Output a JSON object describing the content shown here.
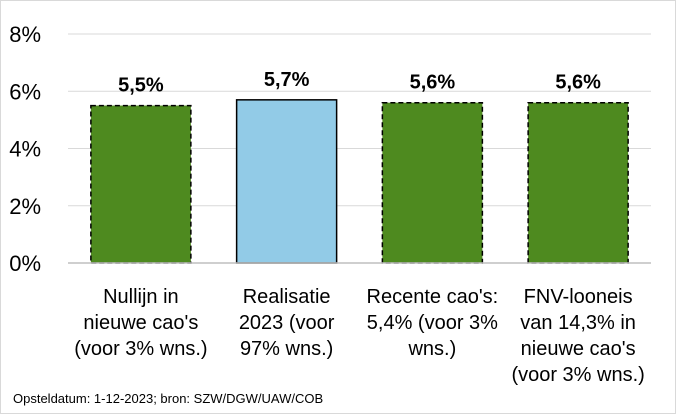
{
  "chart_data": {
    "type": "bar",
    "categories": [
      [
        "Nullijn in",
        "nieuwe cao's",
        "(voor 3% wns.)"
      ],
      [
        "Realisatie",
        "2023 (voor",
        "97% wns.)"
      ],
      [
        "Recente cao's:",
        "5,4% (voor 3%",
        "wns.)"
      ],
      [
        "FNV-looneis",
        "van 14,3% in",
        "nieuwe cao's",
        "(voor 3% wns.)"
      ]
    ],
    "values": [
      5.5,
      5.7,
      5.6,
      5.6
    ],
    "data_labels": [
      "5,5%",
      "5,7%",
      "5,6%",
      "5,6%"
    ],
    "bar_styles": [
      "projection",
      "actual",
      "projection",
      "projection"
    ],
    "ylim": [
      0,
      8
    ],
    "yticks": [
      0,
      2,
      4,
      6,
      8
    ],
    "ytick_labels": [
      "0%",
      "2%",
      "4%",
      "6%",
      "8%"
    ],
    "grid": true,
    "legend": "none",
    "colors": {
      "projection_fill": "#4e8a1f",
      "actual_fill": "#92cbe7",
      "bar_stroke": "#000000",
      "gridline": "#d9d9d9",
      "axis": "#bfbfbf"
    }
  },
  "footnote": "Opsteldatum: 1-12-2023; bron: SZW/DGW/UAW/COB"
}
